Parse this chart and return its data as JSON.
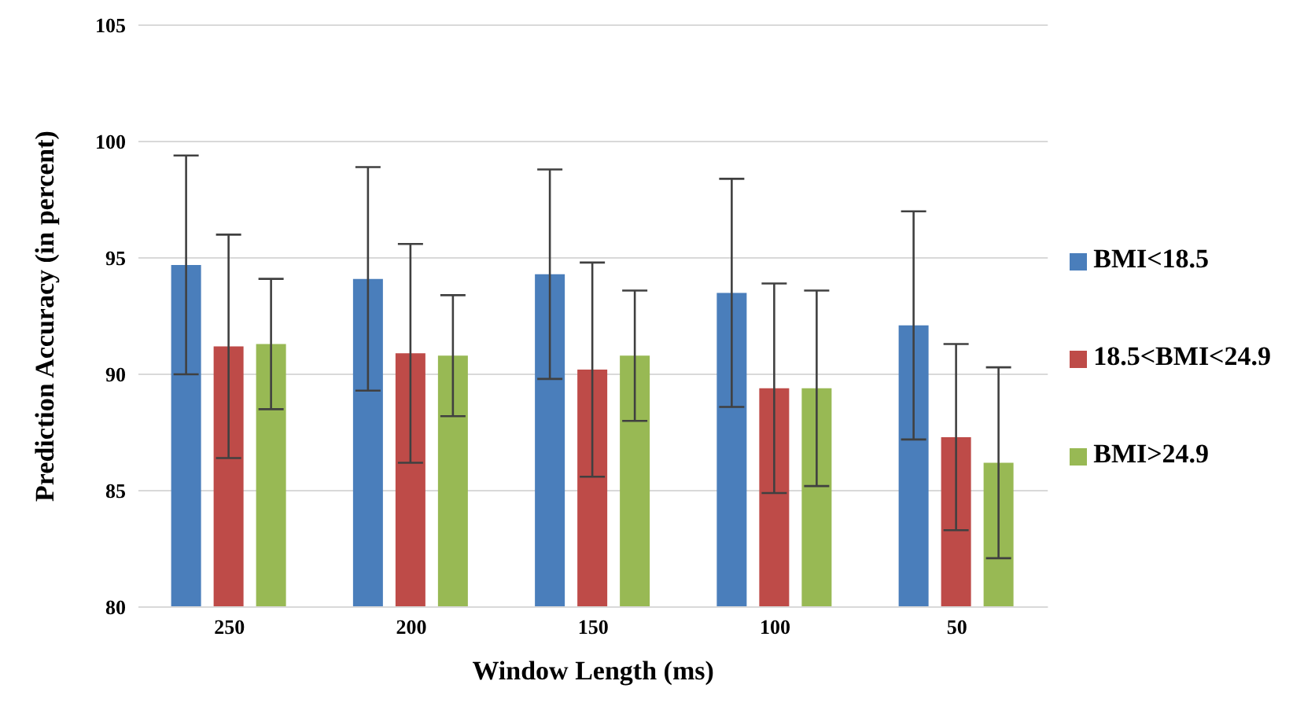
{
  "chart_data": {
    "type": "bar",
    "xlabel": "Window Length (ms)",
    "ylabel": "Prediction Accuracy (in percent)",
    "categories": [
      "250",
      "200",
      "150",
      "100",
      "50"
    ],
    "series": [
      {
        "name": "BMI<18.5",
        "color": "#4a7ebb",
        "values": [
          94.7,
          94.1,
          94.3,
          93.5,
          92.1
        ],
        "errors": [
          4.7,
          4.8,
          4.5,
          4.9,
          4.9
        ]
      },
      {
        "name": "18.5<BMI<24.9",
        "color": "#be4b48",
        "values": [
          91.2,
          90.9,
          90.2,
          89.4,
          87.3
        ],
        "errors": [
          4.8,
          4.7,
          4.6,
          4.5,
          4.0
        ]
      },
      {
        "name": "BMI>24.9",
        "color": "#98b954",
        "values": [
          91.3,
          90.8,
          90.8,
          89.4,
          86.2
        ],
        "errors": [
          2.8,
          2.6,
          2.8,
          4.2,
          4.1
        ]
      }
    ],
    "ylim": [
      80,
      105
    ],
    "yticks": [
      80,
      85,
      90,
      95,
      100,
      105
    ],
    "grid": "y",
    "legend": "right"
  }
}
